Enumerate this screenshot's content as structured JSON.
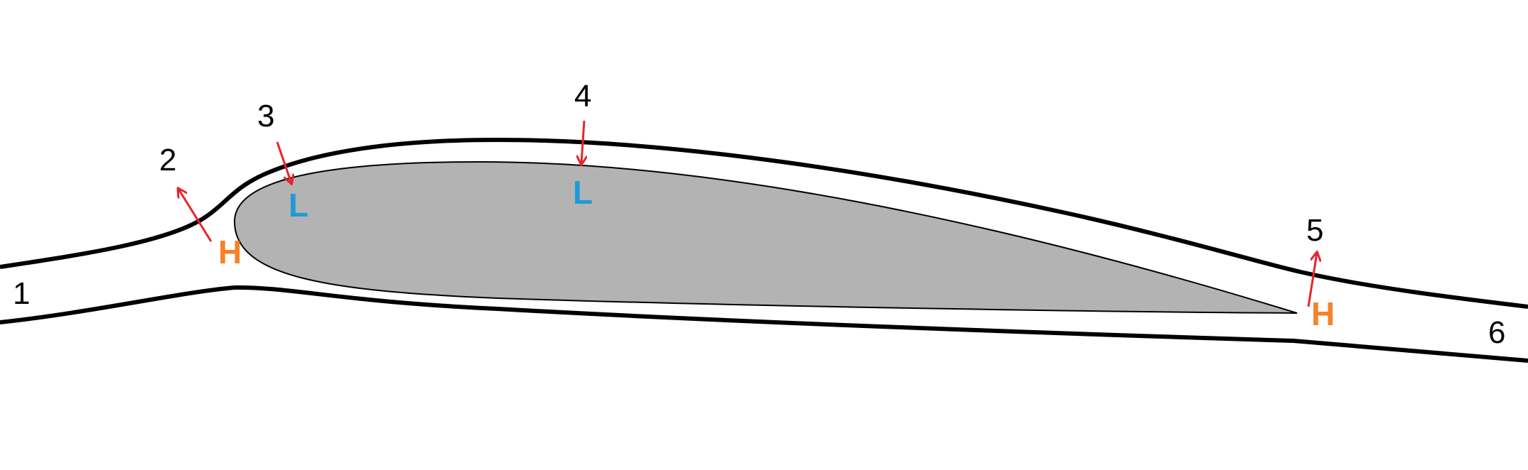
{
  "colors": {
    "airfoil_fill": "#b3b3b3",
    "airfoil_stroke": "#000000",
    "streamline": "#000000",
    "arrow": "#e8242a",
    "high": "#f5832a",
    "low": "#1f9ad8"
  },
  "labels": {
    "p1": "1",
    "p2": "2",
    "p3": "3",
    "p4": "4",
    "p5": "5",
    "p6": "6"
  },
  "markers": {
    "h2": "H",
    "l3": "L",
    "l4": "L",
    "h5": "H"
  }
}
